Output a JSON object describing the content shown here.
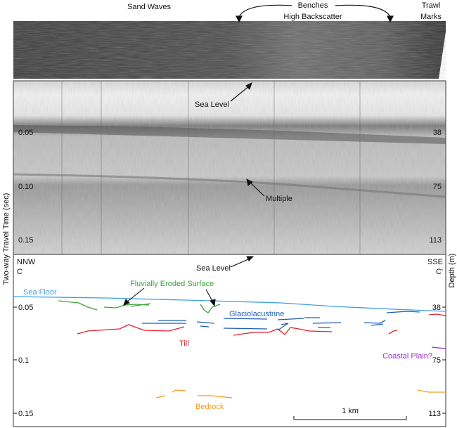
{
  "sonar_labels": {
    "sand_waves": "Sand Waves",
    "benches": "Benches",
    "high_backscatter": "High Backscatter",
    "trawl_1": "Trawl",
    "trawl_2": "Marks"
  },
  "seismic": {
    "sea_level": "Sea Level",
    "multiple": "Multiple",
    "left_ticks": [
      "0.05",
      "0.10",
      "0.15"
    ],
    "right_ticks": [
      "38",
      "75",
      "113"
    ]
  },
  "interpretation": {
    "nnw": "NNW",
    "c": "C",
    "sse": "SSE",
    "c_prime": "C'",
    "sea_level": "Sea Level",
    "sea_floor": "Sea Floor",
    "fluvial": "Fluvially Eroded Surface",
    "glacio": "Glaciolacustrine",
    "till": "Till",
    "coastal": "Coastal Plain?",
    "bedrock": "Bedrock",
    "scale": "1 km",
    "left_ticks": [
      "0.05",
      "0.1",
      "0.15"
    ],
    "right_ticks": [
      "38",
      "75",
      "113"
    ]
  },
  "axes": {
    "left_title": "Two-way Travel Time (sec)",
    "right_title": "Depth (m)"
  },
  "colors": {
    "sea_floor": "#3fa0dc",
    "fluvial": "#3aa53a",
    "glacio": "#1f5fb5",
    "till": "#e8202a",
    "coastal": "#9b2fc9",
    "bedrock": "#f39a1e"
  }
}
